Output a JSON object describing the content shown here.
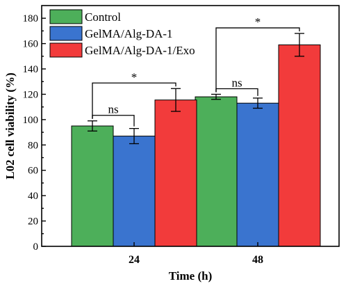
{
  "chart_data": {
    "type": "bar",
    "categories": [
      "24",
      "48"
    ],
    "xlabel": "Time (h)",
    "ylabel": "L02 cell viability (%)",
    "ylim": [
      0,
      190
    ],
    "yticks": [
      0,
      20,
      40,
      60,
      80,
      100,
      120,
      140,
      160,
      180
    ],
    "grid": false,
    "legend_position": "top-left",
    "series": [
      {
        "name": "Control",
        "color": "#4daf5a",
        "values": [
          95,
          118
        ],
        "errors": [
          4,
          2
        ]
      },
      {
        "name": "GelMA/Alg-DA-1",
        "color": "#3a74cf",
        "values": [
          87,
          113
        ],
        "errors": [
          6,
          4
        ]
      },
      {
        "name": "GelMA/Alg-DA-1/Exo",
        "color": "#f23b3b",
        "values": [
          115.5,
          159
        ],
        "errors": [
          9,
          9
        ]
      }
    ],
    "annotations": [
      {
        "category": "24",
        "from_series": 0,
        "to_series": 1,
        "label": "ns"
      },
      {
        "category": "24",
        "from_series": 0,
        "to_series": 2,
        "label": "*"
      },
      {
        "category": "48",
        "from_series": 0,
        "to_series": 1,
        "label": "ns"
      },
      {
        "category": "48",
        "from_series": 0,
        "to_series": 2,
        "label": "*"
      }
    ]
  }
}
